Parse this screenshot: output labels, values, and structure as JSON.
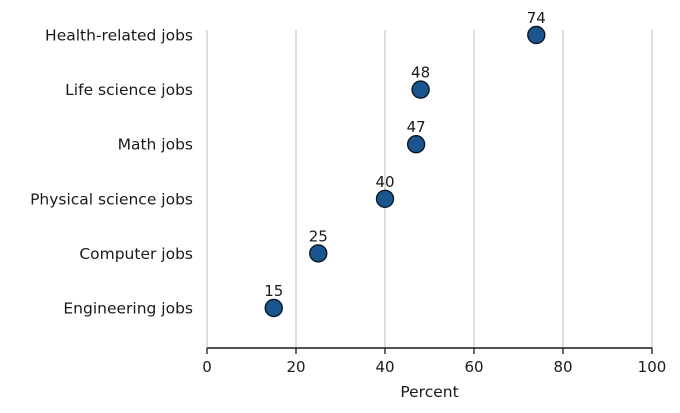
{
  "chart_data": {
    "type": "scatter",
    "subtype": "horizontal-dot-plot",
    "title": "",
    "categories": [
      "Health-related jobs",
      "Life  science jobs",
      "Math jobs",
      "Physical science jobs",
      "Computer jobs",
      "Engineering jobs"
    ],
    "values": [
      74,
      48,
      47,
      40,
      25,
      15
    ],
    "data_labels": [
      "74",
      "48",
      "47",
      "40",
      "25",
      "15"
    ],
    "xlabel": "Percent",
    "xlim": [
      0,
      100
    ],
    "xticks": [
      0,
      20,
      40,
      60,
      80,
      100
    ],
    "xtick_labels": [
      "0",
      "20",
      "40",
      "60",
      "80",
      "100"
    ],
    "grid": "vertical",
    "legend": "none",
    "marker": "circle",
    "colors": {
      "marker_fill": "#1a5590",
      "marker_stroke": "#0a1826",
      "gridline": "#c9c9c9",
      "axis_line": "#1a1a1a",
      "text": "#1a1a1a",
      "background": "#ffffff"
    }
  }
}
